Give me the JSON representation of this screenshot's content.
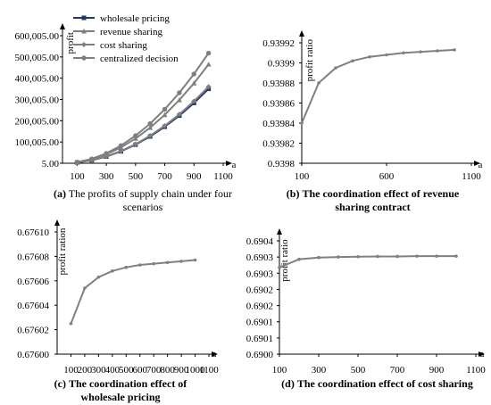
{
  "chart_data": [
    {
      "type": "line",
      "caption_label": "(a)",
      "caption_text": "The profits of supply chain under four scenarios",
      "ylabel": "profit",
      "xlabel": "a",
      "xlim": [
        0,
        1100
      ],
      "ylim": [
        5,
        600005
      ],
      "x_ticks": [
        "100",
        "300",
        "500",
        "700",
        "900",
        "1100"
      ],
      "y_ticks": [
        "5.00",
        "100,005.00",
        "200,005.00",
        "300,005.00",
        "400,005.00",
        "500,005.00",
        "600,005.00"
      ],
      "legend_position": "top-left",
      "x": [
        100,
        200,
        300,
        400,
        500,
        600,
        700,
        800,
        900,
        1000
      ],
      "series": [
        {
          "name": "wholesale pricing",
          "color": "#1f3864",
          "marker": "square",
          "values": [
            3500,
            14000,
            31500,
            56000,
            87500,
            126000,
            171500,
            224000,
            283500,
            350000
          ]
        },
        {
          "name": "revenue sharing",
          "color": "#7f7f7f",
          "marker": "triangle",
          "values": [
            4650,
            18600,
            41850,
            74400,
            116250,
            167400,
            227850,
            297600,
            376650,
            465000
          ]
        },
        {
          "name": "cost sharing",
          "color": "#7f7f7f",
          "marker": "diamond",
          "values": [
            3600,
            14400,
            32400,
            57600,
            90000,
            129600,
            176400,
            230400,
            291600,
            360000
          ]
        },
        {
          "name": "centralized decision",
          "color": "#7f7f7f",
          "marker": "circle",
          "values": [
            5180,
            20720,
            46620,
            82880,
            129500,
            186480,
            253820,
            331520,
            419580,
            518000
          ]
        }
      ]
    },
    {
      "type": "line",
      "caption_label": "(b)",
      "caption_text": "The coordination effect of revenue sharing contract",
      "ylabel": "profit ratio",
      "xlabel": "a",
      "xlim": [
        100,
        1100
      ],
      "ylim": [
        0.9398,
        0.93992
      ],
      "x_ticks": [
        "100",
        "600",
        "1100"
      ],
      "y_ticks": [
        "0.9398",
        "0.93982",
        "0.93984",
        "0.93986",
        "0.93988",
        "0.9399",
        "0.93992"
      ],
      "x": [
        100,
        200,
        300,
        400,
        500,
        600,
        700,
        800,
        900,
        1000
      ],
      "series": [
        {
          "color": "#808080",
          "values": [
            0.93984,
            0.93988,
            0.939895,
            0.939902,
            0.939906,
            0.939908,
            0.93991,
            0.939911,
            0.939912,
            0.939913
          ]
        }
      ]
    },
    {
      "type": "line",
      "caption_label": "(c)",
      "caption_text": "The coordination effect of wholesale pricing",
      "ylabel": "profit ration",
      "xlabel": "a",
      "xlim": [
        0,
        1100
      ],
      "ylim": [
        0.676,
        0.6761
      ],
      "x_ticks": [
        "100",
        "200",
        "300",
        "400",
        "500",
        "600",
        "700",
        "800",
        "900",
        "1000",
        "1100"
      ],
      "y_ticks": [
        "0.67600",
        "0.67602",
        "0.67604",
        "0.67606",
        "0.67608",
        "0.67610"
      ],
      "x": [
        100,
        200,
        300,
        400,
        500,
        600,
        700,
        800,
        900,
        1000
      ],
      "series": [
        {
          "color": "#808080",
          "values": [
            0.676025,
            0.676054,
            0.676063,
            0.676068,
            0.676071,
            0.676073,
            0.676074,
            0.676075,
            0.676076,
            0.676077
          ]
        }
      ]
    },
    {
      "type": "line",
      "caption_label": "(d)",
      "caption_text": "The coordination effect of cost sharing",
      "ylabel": "profit ratio",
      "xlabel": "a",
      "xlim": [
        100,
        1100
      ],
      "ylim": [
        0.69,
        0.6904
      ],
      "x_ticks": [
        "100",
        "300",
        "500",
        "700",
        "900",
        "1100"
      ],
      "y_ticks": [
        "0.6900",
        "0.6901",
        "0.6901",
        "0.6902",
        "0.6902",
        "0.6903",
        "0.6903",
        "0.6904"
      ],
      "x": [
        100,
        200,
        300,
        400,
        500,
        600,
        700,
        800,
        900,
        1000
      ],
      "series": [
        {
          "color": "#808080",
          "values": [
            0.690306,
            0.690335,
            0.690341,
            0.690343,
            0.690344,
            0.690345,
            0.690345,
            0.690346,
            0.690346,
            0.690346
          ]
        }
      ]
    }
  ]
}
